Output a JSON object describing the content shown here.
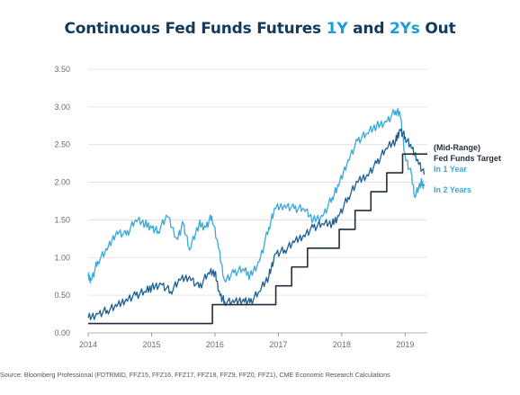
{
  "title_parts": {
    "prefix": "Continuous Fed Funds Futures ",
    "highlight1": "1Y",
    "middle": " and ",
    "highlight2": "2Ys",
    "suffix": " Out"
  },
  "source": "Source: Bloomberg Professional (FDTRMID, FFZ15, FFZ16, FFZ17, FFZ18, FFZ9, FFZ0, FFZ1), CME Economic Research Calculations",
  "colors": {
    "target": "#1f2d3d",
    "one_year": "#1b5f95",
    "two_year": "#3aa8d8",
    "title": "#123a5c",
    "grid": "#dcdcdc"
  },
  "chart_data": {
    "type": "line",
    "title": "Continuous Fed Funds Futures 1Y and 2Ys Out",
    "xlabel": "",
    "ylabel": "",
    "ylim": [
      0,
      3.5
    ],
    "xlim": [
      2014,
      2019.35
    ],
    "y_ticks": [
      "0.00",
      "0.50",
      "1.00",
      "1.50",
      "2.00",
      "2.50",
      "3.00",
      "3.50"
    ],
    "x_ticks": [
      "2014",
      "2015",
      "2016",
      "2017",
      "2018",
      "2019"
    ],
    "grid": "horizontal",
    "legend": [
      "(Mid-Range)",
      "Fed Funds Target",
      "In 1 Year",
      "In 2 Years"
    ],
    "series": [
      {
        "name": "(Mid-Range) Fed Funds Target",
        "step": true,
        "x": [
          2014.0,
          2015.96,
          2016.96,
          2017.21,
          2017.46,
          2017.96,
          2018.21,
          2018.46,
          2018.71,
          2018.96,
          2019.35
        ],
        "y": [
          0.125,
          0.375,
          0.625,
          0.875,
          1.125,
          1.375,
          1.625,
          1.875,
          2.125,
          2.375,
          2.375
        ]
      },
      {
        "name": "In 1 Year",
        "x": [
          2014.0,
          2014.15,
          2014.3,
          2014.45,
          2014.6,
          2014.75,
          2014.9,
          2015.0,
          2015.15,
          2015.3,
          2015.45,
          2015.6,
          2015.75,
          2015.9,
          2016.0,
          2016.08,
          2016.15,
          2016.3,
          2016.45,
          2016.55,
          2016.7,
          2016.85,
          2016.95,
          2017.1,
          2017.25,
          2017.4,
          2017.55,
          2017.7,
          2017.85,
          2017.95,
          2018.1,
          2018.25,
          2018.4,
          2018.55,
          2018.7,
          2018.85,
          2018.92,
          2019.0,
          2019.1,
          2019.2,
          2019.3
        ],
        "y": [
          0.2,
          0.25,
          0.3,
          0.35,
          0.45,
          0.5,
          0.55,
          0.6,
          0.65,
          0.55,
          0.7,
          0.75,
          0.6,
          0.8,
          0.8,
          0.5,
          0.42,
          0.4,
          0.45,
          0.4,
          0.55,
          0.75,
          1.05,
          1.1,
          1.2,
          1.3,
          1.4,
          1.45,
          1.45,
          1.55,
          1.8,
          2.0,
          2.1,
          2.25,
          2.45,
          2.55,
          2.7,
          2.6,
          2.45,
          2.3,
          2.1
        ]
      },
      {
        "name": "In 2 Years",
        "x": [
          2014.0,
          2014.05,
          2014.15,
          2014.3,
          2014.45,
          2014.6,
          2014.75,
          2014.9,
          2015.0,
          2015.1,
          2015.25,
          2015.4,
          2015.5,
          2015.6,
          2015.75,
          2015.85,
          2015.95,
          2016.05,
          2016.15,
          2016.3,
          2016.45,
          2016.55,
          2016.7,
          2016.85,
          2016.95,
          2017.1,
          2017.25,
          2017.4,
          2017.55,
          2017.7,
          2017.85,
          2017.95,
          2018.1,
          2018.25,
          2018.4,
          2018.55,
          2018.7,
          2018.85,
          2018.92,
          2019.0,
          2019.1,
          2019.15,
          2019.25,
          2019.3
        ],
        "y": [
          0.75,
          0.7,
          0.95,
          1.1,
          1.35,
          1.3,
          1.5,
          1.45,
          1.4,
          1.35,
          1.55,
          1.25,
          1.45,
          1.1,
          1.45,
          1.4,
          1.55,
          1.15,
          0.7,
          0.8,
          0.85,
          0.75,
          0.95,
          1.4,
          1.65,
          1.7,
          1.65,
          1.65,
          1.5,
          1.55,
          1.8,
          1.95,
          2.3,
          2.55,
          2.65,
          2.75,
          2.8,
          2.95,
          2.9,
          2.35,
          2.1,
          1.8,
          2.0,
          1.95
        ]
      }
    ]
  }
}
